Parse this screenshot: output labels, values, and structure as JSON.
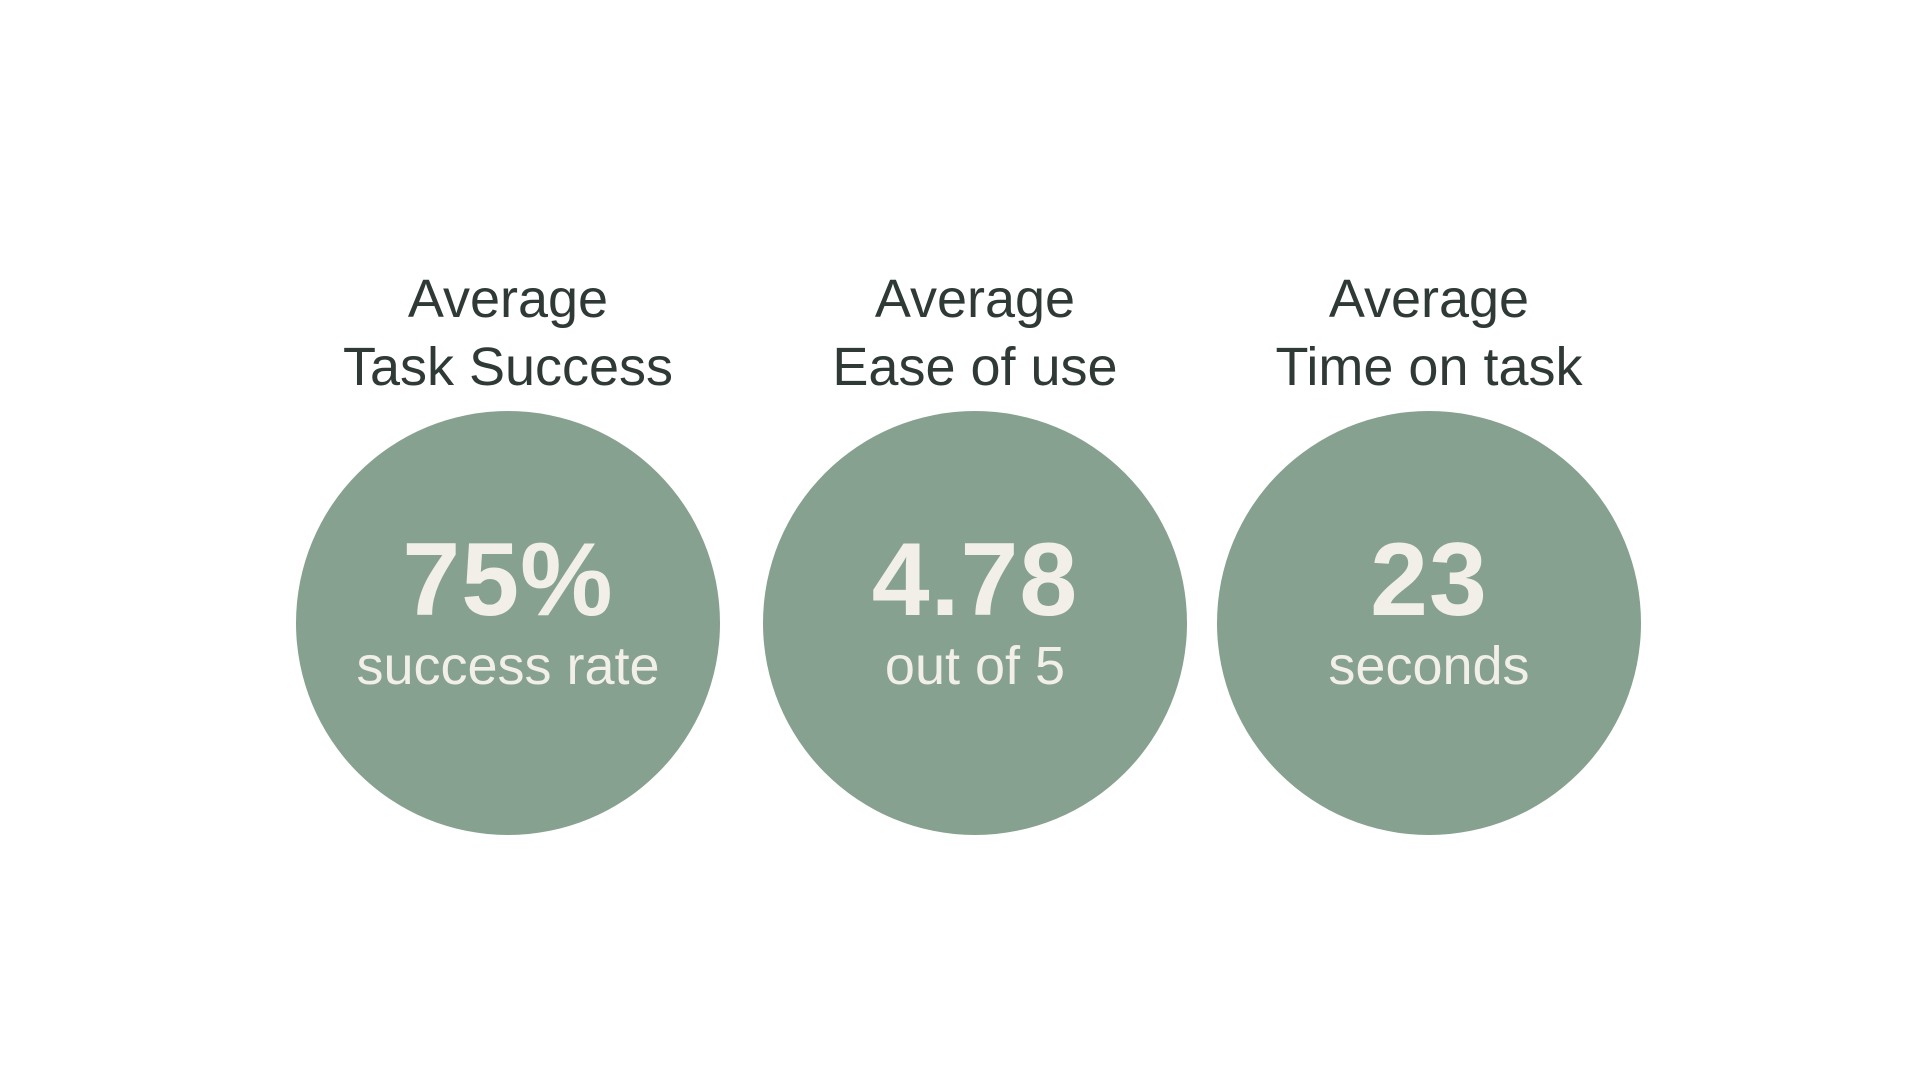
{
  "theme": {
    "circle_color": "#86a18f",
    "circle_text_color": "#f1efe8",
    "heading_color": "#2f3a36",
    "background": "#ffffff"
  },
  "metrics": [
    {
      "heading_line1": "Average",
      "heading_line2": "Task Success",
      "value": "75%",
      "caption": "success rate"
    },
    {
      "heading_line1": "Average",
      "heading_line2": "Ease of use",
      "value": "4.78",
      "caption": "out of 5"
    },
    {
      "heading_line1": "Average",
      "heading_line2": "Time on task",
      "value": "23",
      "caption": "seconds"
    }
  ]
}
